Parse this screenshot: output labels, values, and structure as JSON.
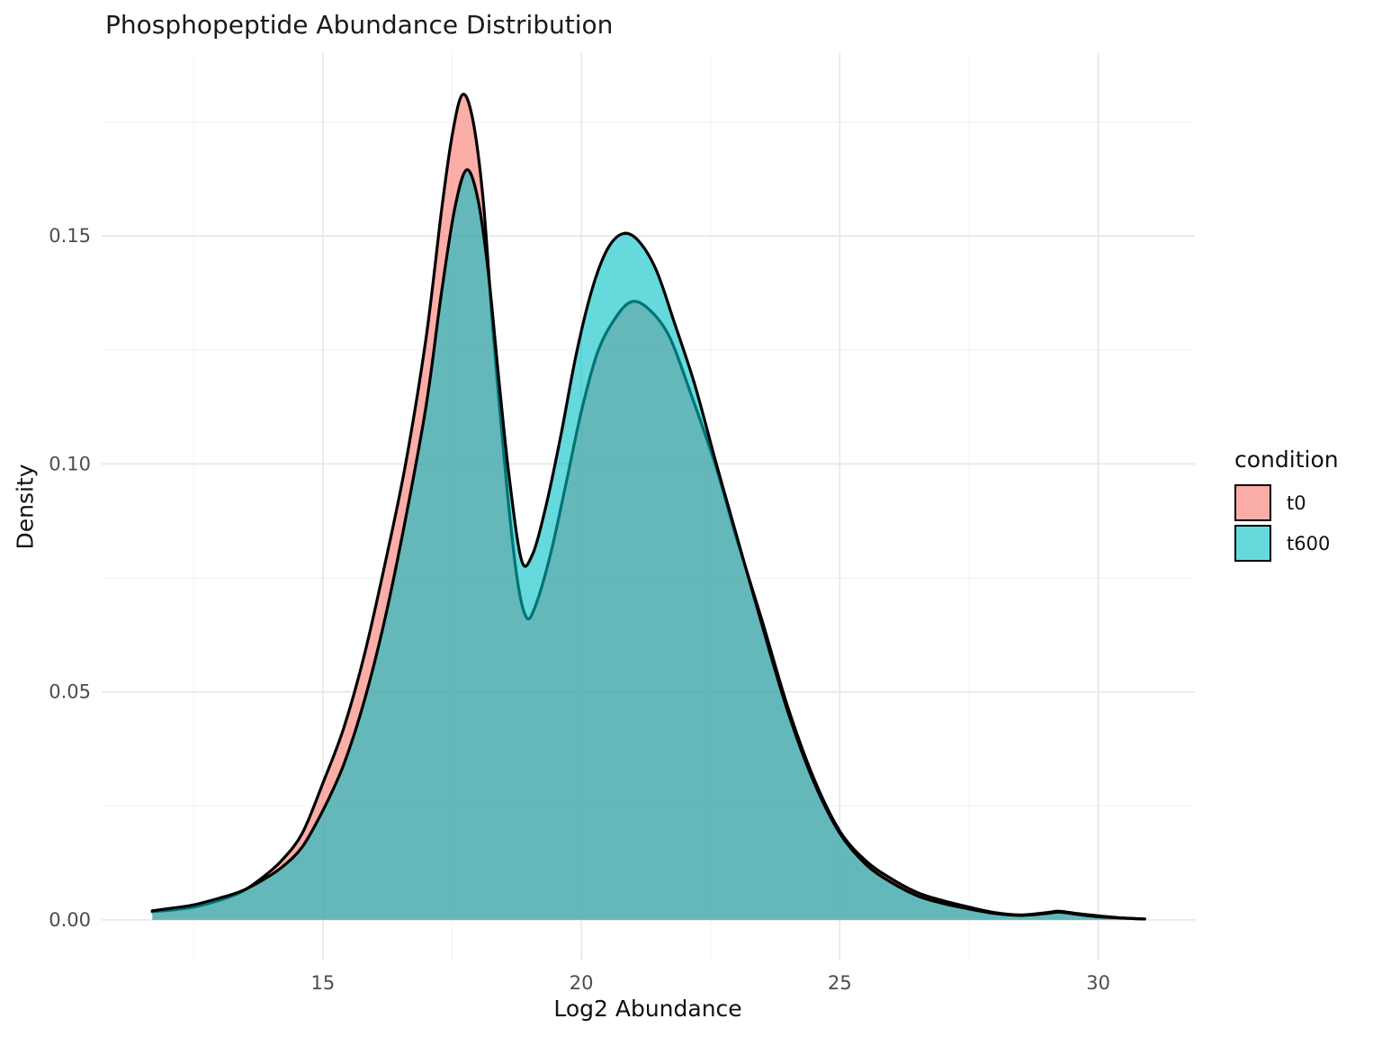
{
  "header": {
    "title": "Phosphopeptide Abundance Distribution"
  },
  "chart_data": {
    "type": "area",
    "subtype": "density",
    "title": "Phosphopeptide Abundance Distribution",
    "xlabel": "Log2 Abundance",
    "ylabel": "Density",
    "xlim": [
      10.72,
      31.87
    ],
    "ylim": [
      -0.0089,
      0.1901
    ],
    "x_ticks": {
      "values": [
        15,
        20,
        25,
        30
      ],
      "labels": [
        "15",
        "20",
        "25",
        "30"
      ]
    },
    "y_ticks": {
      "values": [
        0.0,
        0.05,
        0.1,
        0.15
      ],
      "labels": [
        "0.00",
        "0.05",
        "0.10",
        "0.15"
      ]
    },
    "x_minor": [
      12.5,
      17.5,
      22.5,
      27.5
    ],
    "y_minor": [
      0.025,
      0.075,
      0.125,
      0.175
    ],
    "grid": {
      "major_color": "#E7E7E7",
      "minor_color": "#F2F2F2",
      "background": "#FFFFFF"
    },
    "legend_position": "right",
    "stroke_color": "#000000",
    "stroke_width": 3.2,
    "fill_alpha": 0.6,
    "axis_text_color": "#4D4D4D",
    "series": [
      {
        "name": "t0",
        "fill": "#F8766D",
        "peaks": [
          {
            "x": 17.7,
            "density": 0.181
          },
          {
            "x": 20.95,
            "density": 0.1355
          }
        ],
        "valley": {
          "x": 18.93,
          "density": 0.0665
        },
        "points": [
          [
            11.7,
            0.0018
          ],
          [
            12.1,
            0.0022
          ],
          [
            12.5,
            0.0028
          ],
          [
            13.0,
            0.0043
          ],
          [
            13.4,
            0.006
          ],
          [
            13.8,
            0.009
          ],
          [
            14.2,
            0.013
          ],
          [
            14.6,
            0.019
          ],
          [
            15.0,
            0.03
          ],
          [
            15.4,
            0.042
          ],
          [
            15.8,
            0.058
          ],
          [
            16.2,
            0.078
          ],
          [
            16.6,
            0.1
          ],
          [
            17.0,
            0.128
          ],
          [
            17.3,
            0.156
          ],
          [
            17.5,
            0.172
          ],
          [
            17.7,
            0.181
          ],
          [
            17.9,
            0.1755
          ],
          [
            18.1,
            0.158
          ],
          [
            18.3,
            0.128
          ],
          [
            18.55,
            0.096
          ],
          [
            18.75,
            0.0755
          ],
          [
            18.93,
            0.0665
          ],
          [
            19.1,
            0.0685
          ],
          [
            19.4,
            0.08
          ],
          [
            19.7,
            0.0955
          ],
          [
            20.0,
            0.1115
          ],
          [
            20.3,
            0.124
          ],
          [
            20.6,
            0.131
          ],
          [
            20.95,
            0.1355
          ],
          [
            21.3,
            0.134
          ],
          [
            21.7,
            0.128
          ],
          [
            22.1,
            0.116
          ],
          [
            22.6,
            0.0995
          ],
          [
            23.0,
            0.0838
          ],
          [
            23.5,
            0.0655
          ],
          [
            24.0,
            0.0465
          ],
          [
            24.5,
            0.031
          ],
          [
            25.0,
            0.0195
          ],
          [
            25.5,
            0.013
          ],
          [
            26.0,
            0.009
          ],
          [
            26.5,
            0.006
          ],
          [
            27.0,
            0.0042
          ],
          [
            27.5,
            0.0028
          ],
          [
            28.0,
            0.0016
          ],
          [
            28.5,
            0.0011
          ],
          [
            29.0,
            0.0016
          ],
          [
            29.25,
            0.0019
          ],
          [
            29.6,
            0.0014
          ],
          [
            30.0,
            0.0009
          ],
          [
            30.5,
            0.0004
          ],
          [
            30.9,
            0.0002
          ]
        ]
      },
      {
        "name": "t600",
        "fill": "#00BFC4",
        "peaks": [
          {
            "x": 17.78,
            "density": 0.1645
          },
          {
            "x": 20.8,
            "density": 0.1505
          }
        ],
        "valley": {
          "x": 18.84,
          "density": 0.079
        },
        "points": [
          [
            11.7,
            0.002
          ],
          [
            12.1,
            0.0026
          ],
          [
            12.5,
            0.0033
          ],
          [
            13.0,
            0.0048
          ],
          [
            13.4,
            0.0062
          ],
          [
            13.8,
            0.0085
          ],
          [
            14.2,
            0.0115
          ],
          [
            14.6,
            0.016
          ],
          [
            15.0,
            0.024
          ],
          [
            15.4,
            0.034
          ],
          [
            15.8,
            0.048
          ],
          [
            16.2,
            0.066
          ],
          [
            16.6,
            0.088
          ],
          [
            17.0,
            0.113
          ],
          [
            17.3,
            0.138
          ],
          [
            17.55,
            0.156
          ],
          [
            17.78,
            0.1645
          ],
          [
            18.0,
            0.158
          ],
          [
            18.2,
            0.142
          ],
          [
            18.4,
            0.119
          ],
          [
            18.6,
            0.0975
          ],
          [
            18.84,
            0.079
          ],
          [
            19.05,
            0.08
          ],
          [
            19.3,
            0.09
          ],
          [
            19.6,
            0.106
          ],
          [
            19.9,
            0.124
          ],
          [
            20.2,
            0.138
          ],
          [
            20.5,
            0.147
          ],
          [
            20.8,
            0.1505
          ],
          [
            21.1,
            0.149
          ],
          [
            21.45,
            0.1425
          ],
          [
            21.8,
            0.131
          ],
          [
            22.2,
            0.1172
          ],
          [
            22.6,
            0.1005
          ],
          [
            23.0,
            0.0845
          ],
          [
            23.5,
            0.0645
          ],
          [
            24.0,
            0.0455
          ],
          [
            24.5,
            0.0302
          ],
          [
            25.0,
            0.019
          ],
          [
            25.5,
            0.0122
          ],
          [
            26.0,
            0.0082
          ],
          [
            26.5,
            0.0053
          ],
          [
            27.0,
            0.0036
          ],
          [
            27.5,
            0.0024
          ],
          [
            28.0,
            0.0014
          ],
          [
            28.5,
            0.001
          ],
          [
            29.0,
            0.0014
          ],
          [
            29.25,
            0.0017
          ],
          [
            29.6,
            0.0012
          ],
          [
            30.0,
            0.0007
          ],
          [
            30.5,
            0.0004
          ],
          [
            30.85,
            0.0002
          ]
        ]
      }
    ]
  },
  "legend": {
    "title": "condition",
    "entries": [
      {
        "label": "t0",
        "fill": "#F8766D"
      },
      {
        "label": "t600",
        "fill": "#00BFC4"
      }
    ]
  }
}
